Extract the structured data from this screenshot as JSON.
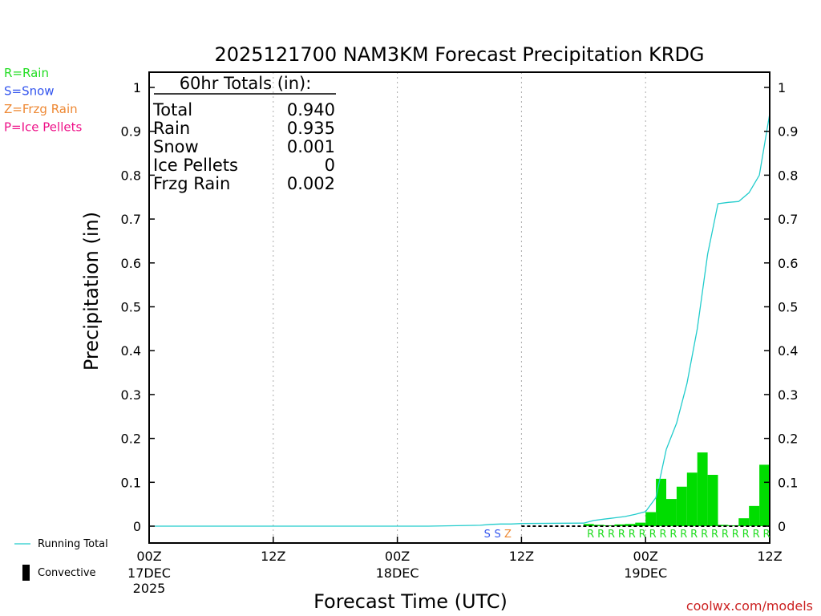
{
  "chart_data": {
    "type": "bar",
    "title": "2025121700 NAM3KM Forecast Precipitation KRDG",
    "xlabel": "Forecast Time (UTC)",
    "ylabel": "Precipitation (in)",
    "ylim": [
      0,
      1.05
    ],
    "yticks": [
      0,
      0.1,
      0.2,
      0.3,
      0.4,
      0.5,
      0.6,
      0.7,
      0.8,
      0.9,
      1
    ],
    "ytick_labels": [
      "0",
      "0.1",
      "0.2",
      "0.3",
      "0.4",
      "0.5",
      "0.6",
      "0.7",
      "0.8",
      "0.9",
      "1"
    ],
    "xlim_hours": [
      0,
      60
    ],
    "xticks": [
      {
        "hour": 0,
        "label": "00Z",
        "sub1": "17DEC",
        "sub2": "2025"
      },
      {
        "hour": 12,
        "label": "12Z",
        "sub1": "",
        "sub2": ""
      },
      {
        "hour": 24,
        "label": "00Z",
        "sub1": "18DEC",
        "sub2": ""
      },
      {
        "hour": 36,
        "label": "12Z",
        "sub1": "",
        "sub2": ""
      },
      {
        "hour": 48,
        "label": "00Z",
        "sub1": "19DEC",
        "sub2": ""
      },
      {
        "hour": 60,
        "label": "12Z",
        "sub1": "",
        "sub2": ""
      }
    ],
    "gridlines_hours": [
      12,
      24,
      36,
      48
    ],
    "totals_box": {
      "header": "60hr Totals (in):",
      "rows": [
        {
          "label": "Total",
          "value": "0.940"
        },
        {
          "label": "Rain",
          "value": "0.935"
        },
        {
          "label": "Snow",
          "value": "0.001"
        },
        {
          "label": "Ice Pellets",
          "value": "0"
        },
        {
          "label": "Frzg Rain",
          "value": "0.002"
        }
      ]
    },
    "ptype_legend": [
      {
        "text": "R=Rain",
        "color": "#22dd22"
      },
      {
        "text": "S=Snow",
        "color": "#3355ee"
      },
      {
        "text": "Z=Frzg Rain",
        "color": "#ee8833"
      },
      {
        "text": "P=Ice Pellets",
        "color": "#ee1188"
      }
    ],
    "series_legend": [
      {
        "text": "Running Total",
        "kind": "line",
        "color": "#22cccc"
      },
      {
        "text": "Convective",
        "kind": "bar",
        "color": "#000000"
      }
    ],
    "credit": "coolwx.com/models",
    "running_total": {
      "name": "Running Total",
      "color": "#22cccc",
      "hours": [
        0,
        27,
        32,
        33,
        34,
        35,
        36,
        42,
        43,
        44,
        45,
        46,
        47,
        48,
        49,
        50,
        51,
        52,
        53,
        54,
        55,
        56,
        57,
        58,
        59,
        60
      ],
      "values": [
        0,
        0,
        0.002,
        0.004,
        0.005,
        0.005,
        0.006,
        0.007,
        0.013,
        0.016,
        0.019,
        0.022,
        0.027,
        0.033,
        0.065,
        0.175,
        0.235,
        0.325,
        0.45,
        0.62,
        0.735,
        0.738,
        0.74,
        0.76,
        0.8,
        0.94
      ]
    },
    "hourly_bars": {
      "name": "Hourly Precipitation",
      "color": "#00dd00",
      "hours": [
        43,
        44,
        45,
        46,
        47,
        48,
        49,
        50,
        51,
        52,
        53,
        54,
        55,
        56,
        57,
        58,
        59,
        60
      ],
      "values": [
        0.005,
        0.003,
        0.002,
        0.004,
        0.005,
        0.008,
        0.032,
        0.108,
        0.062,
        0.09,
        0.122,
        0.168,
        0.117,
        0.003,
        0.002,
        0.018,
        0.046,
        0.14
      ]
    },
    "ptype_markers": [
      {
        "hour": 33,
        "letter": "S",
        "color": "#3355ee"
      },
      {
        "hour": 34,
        "letter": "S",
        "color": "#3355ee"
      },
      {
        "hour": 35,
        "letter": "Z",
        "color": "#ee8833"
      },
      {
        "hour": 43,
        "letter": "R",
        "color": "#22dd22"
      },
      {
        "hour": 44,
        "letter": "R",
        "color": "#22dd22"
      },
      {
        "hour": 45,
        "letter": "R",
        "color": "#22dd22"
      },
      {
        "hour": 46,
        "letter": "R",
        "color": "#22dd22"
      },
      {
        "hour": 47,
        "letter": "R",
        "color": "#22dd22"
      },
      {
        "hour": 48,
        "letter": "R",
        "color": "#22dd22"
      },
      {
        "hour": 49,
        "letter": "R",
        "color": "#22dd22"
      },
      {
        "hour": 50,
        "letter": "R",
        "color": "#22dd22"
      },
      {
        "hour": 51,
        "letter": "R",
        "color": "#22dd22"
      },
      {
        "hour": 52,
        "letter": "R",
        "color": "#22dd22"
      },
      {
        "hour": 53,
        "letter": "R",
        "color": "#22dd22"
      },
      {
        "hour": 54,
        "letter": "R",
        "color": "#22dd22"
      },
      {
        "hour": 55,
        "letter": "R",
        "color": "#22dd22"
      },
      {
        "hour": 56,
        "letter": "R",
        "color": "#22dd22"
      },
      {
        "hour": 57,
        "letter": "R",
        "color": "#22dd22"
      },
      {
        "hour": 58,
        "letter": "R",
        "color": "#22dd22"
      },
      {
        "hour": 59,
        "letter": "R",
        "color": "#22dd22"
      },
      {
        "hour": 60,
        "letter": "R",
        "color": "#22dd22"
      }
    ]
  }
}
